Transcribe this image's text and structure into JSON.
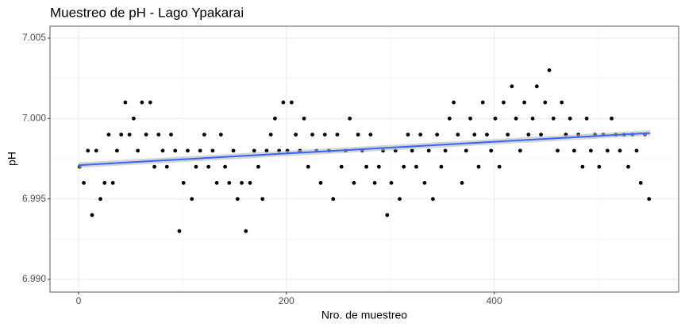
{
  "chart_data": {
    "type": "scatter",
    "title": "Muestreo de pH  - Lago Ypakarai",
    "x_label": "Nro. de muestreo",
    "y_label": "pH",
    "grid": true,
    "color": "#000000",
    "xlim": [
      -27.5,
      577.5
    ],
    "xticks": [
      0,
      200,
      400
    ],
    "ylim": [
      6.98921,
      7.00574
    ],
    "yticks": [
      {
        "value": 6.99,
        "label": "6.990"
      },
      {
        "value": 6.995,
        "label": "6.995"
      },
      {
        "value": 7.0,
        "label": "7.000"
      },
      {
        "value": 7.005,
        "label": "7.005"
      }
    ],
    "x": [
      1,
      5,
      9,
      13,
      17,
      21,
      25,
      29,
      33,
      37,
      41,
      45,
      49,
      53,
      57,
      61,
      65,
      69,
      73,
      77,
      81,
      85,
      89,
      93,
      97,
      101,
      105,
      109,
      113,
      117,
      121,
      125,
      129,
      133,
      137,
      141,
      145,
      149,
      153,
      157,
      161,
      165,
      169,
      173,
      177,
      181,
      185,
      189,
      193,
      197,
      201,
      205,
      209,
      213,
      217,
      221,
      225,
      229,
      233,
      237,
      241,
      245,
      249,
      253,
      257,
      261,
      265,
      269,
      273,
      277,
      281,
      285,
      289,
      293,
      297,
      301,
      305,
      309,
      313,
      317,
      321,
      325,
      329,
      333,
      337,
      341,
      345,
      349,
      353,
      357,
      361,
      365,
      369,
      373,
      377,
      381,
      385,
      389,
      393,
      397,
      401,
      405,
      409,
      413,
      417,
      421,
      425,
      429,
      433,
      437,
      441,
      445,
      449,
      453,
      457,
      461,
      465,
      469,
      473,
      477,
      481,
      485,
      489,
      493,
      497,
      501,
      505,
      509,
      513,
      517,
      521,
      525,
      529,
      533,
      537,
      541,
      545,
      549
    ],
    "values": [
      6.997,
      6.996,
      6.998,
      6.994,
      6.998,
      6.995,
      6.996,
      6.999,
      6.996,
      6.998,
      6.999,
      7.001,
      6.999,
      7.0,
      6.998,
      7.001,
      6.999,
      7.001,
      6.997,
      6.999,
      6.998,
      6.997,
      6.999,
      6.998,
      6.993,
      6.996,
      6.998,
      6.995,
      6.997,
      6.998,
      6.999,
      6.997,
      6.998,
      6.996,
      6.999,
      6.997,
      6.996,
      6.998,
      6.995,
      6.996,
      6.993,
      6.996,
      6.998,
      6.997,
      6.995,
      6.998,
      6.999,
      7.0,
      6.998,
      7.001,
      6.998,
      7.001,
      6.999,
      6.998,
      7.0,
      6.997,
      6.999,
      6.998,
      6.996,
      6.999,
      6.998,
      6.995,
      6.999,
      6.997,
      6.998,
      7.0,
      6.996,
      6.999,
      6.998,
      6.997,
      6.999,
      6.996,
      6.997,
      6.998,
      6.994,
      6.996,
      6.998,
      6.995,
      6.997,
      6.999,
      6.998,
      6.997,
      6.999,
      6.996,
      6.998,
      6.995,
      6.999,
      6.997,
      6.998,
      7.0,
      7.001,
      6.999,
      6.996,
      6.998,
      7.0,
      6.999,
      6.997,
      7.001,
      6.999,
      6.998,
      7.0,
      6.997,
      7.001,
      6.999,
      7.002,
      7.0,
      6.998,
      7.001,
      6.999,
      7.0,
      7.002,
      6.999,
      7.001,
      7.003,
      7.0,
      6.998,
      7.001,
      6.999,
      7.0,
      6.998,
      6.999,
      6.997,
      7.0,
      6.998,
      6.999,
      6.997,
      6.999,
      6.998,
      7.0,
      6.999,
      6.998,
      6.999,
      6.997,
      6.999,
      6.998,
      6.996,
      6.999,
      6.995
    ],
    "trend": {
      "x": [
        0,
        550
      ],
      "y": [
        6.9971,
        6.9991
      ],
      "color": "#3366ff"
    }
  }
}
